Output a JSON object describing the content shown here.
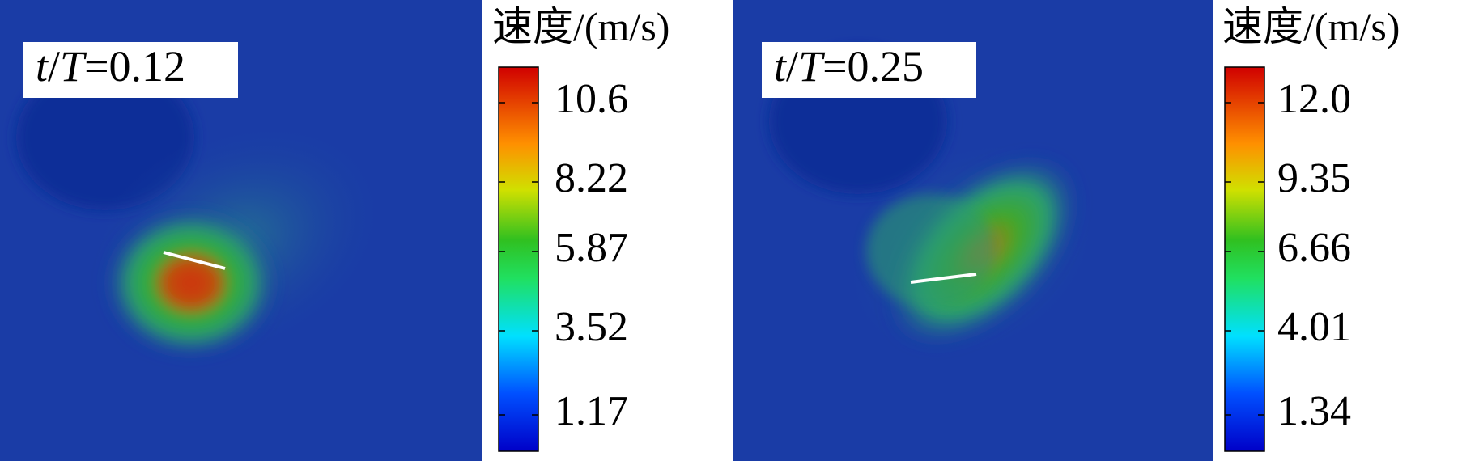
{
  "panels": [
    {
      "label": [
        "t",
        "/",
        "T",
        "=0.12"
      ],
      "colorbar_title": "速度/(m/s)",
      "ticks": [
        "10.6",
        "8.22",
        "5.87",
        "3.52",
        "1.17"
      ]
    },
    {
      "label": [
        "t",
        "/",
        "T",
        "=0.25"
      ],
      "colorbar_title": "速度/(m/s)",
      "ticks": [
        "12.0",
        "9.35",
        "6.66",
        "4.01",
        "1.34"
      ]
    }
  ]
}
